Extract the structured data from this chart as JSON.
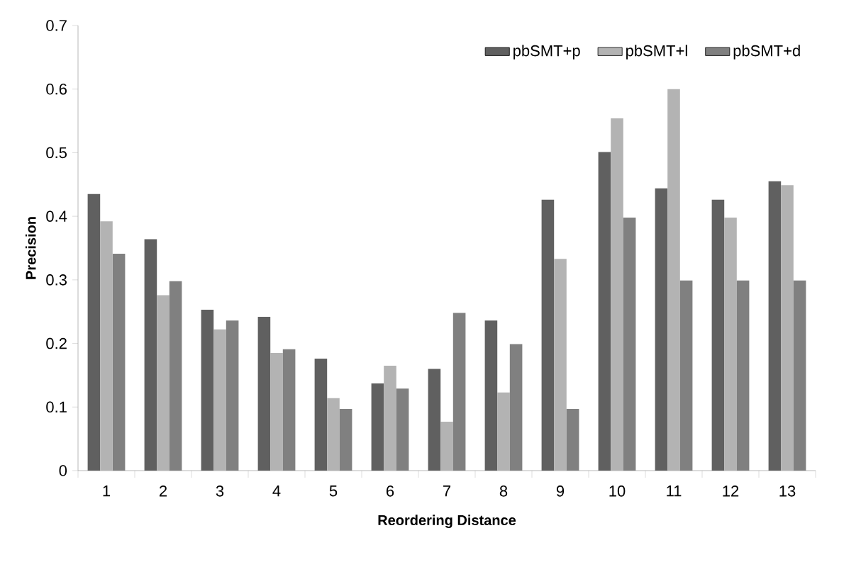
{
  "chart_data": {
    "type": "bar",
    "xlabel": "Reordering Distance",
    "ylabel": "Precision",
    "categories": [
      "1",
      "2",
      "3",
      "4",
      "5",
      "6",
      "7",
      "8",
      "9",
      "10",
      "11",
      "12",
      "13"
    ],
    "series": [
      {
        "name": "pbSMT+p",
        "color": "#606060",
        "values": [
          0.435,
          0.364,
          0.253,
          0.242,
          0.176,
          0.137,
          0.16,
          0.236,
          0.426,
          0.501,
          0.444,
          0.426,
          0.455
        ]
      },
      {
        "name": "pbSMT+l",
        "color": "#b3b3b3",
        "values": [
          0.392,
          0.276,
          0.222,
          0.185,
          0.114,
          0.165,
          0.077,
          0.123,
          0.333,
          0.554,
          0.6,
          0.398,
          0.449
        ]
      },
      {
        "name": "pbSMT+d",
        "color": "#808080",
        "values": [
          0.341,
          0.298,
          0.236,
          0.191,
          0.097,
          0.129,
          0.248,
          0.199,
          0.097,
          0.398,
          0.299,
          0.299,
          0.299
        ]
      }
    ],
    "ylim": [
      0,
      0.7
    ],
    "yticks": [
      0,
      0.1,
      0.2,
      0.3,
      0.4,
      0.5,
      0.6,
      0.7
    ],
    "legend": "top right"
  }
}
